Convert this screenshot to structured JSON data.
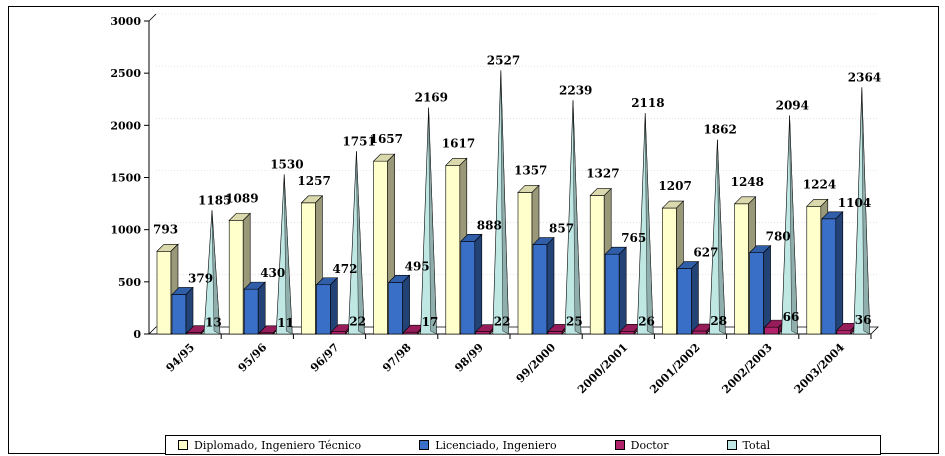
{
  "chart_data": {
    "type": "bar",
    "categories": [
      "94/95",
      "95/96",
      "96/97",
      "97/98",
      "98/99",
      "99/2000",
      "2000/2001",
      "2001/2002",
      "2002/2003",
      "2003/2004"
    ],
    "series": [
      {
        "name": "Diplomado, Ingeniero Técnico",
        "values": [
          793,
          1089,
          1257,
          1657,
          1617,
          1357,
          1327,
          1207,
          1248,
          1224
        ],
        "color": "#ffffcc"
      },
      {
        "name": "Licenciado, Ingeniero",
        "values": [
          379,
          430,
          472,
          495,
          888,
          857,
          765,
          627,
          780,
          1104
        ],
        "color": "#3a6fc7"
      },
      {
        "name": "Doctor",
        "values": [
          13,
          11,
          22,
          17,
          22,
          25,
          26,
          28,
          66,
          36
        ],
        "color": "#b0226a"
      },
      {
        "name": "Total",
        "values": [
          1185,
          1530,
          1751,
          2169,
          2527,
          2239,
          2118,
          1862,
          2094,
          2364
        ],
        "color": "#bfe8e5"
      }
    ],
    "yticks": [
      0,
      500,
      1000,
      1500,
      2000,
      2500,
      3000
    ],
    "ylim": [
      0,
      3000
    ],
    "legend": "bottom",
    "grid": false
  }
}
